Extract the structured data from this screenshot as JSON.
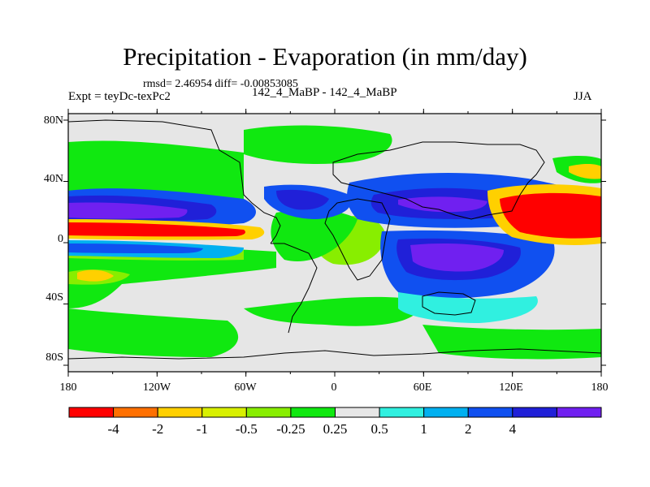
{
  "title": "Precipitation - Evaporation (in mm/day)",
  "stats": "rmsd= 2.46954 diff= -0.00853085",
  "experiment": "Expt = teyDc-texPc2",
  "subtitle": "142_4_MaBP - 142_4_MaBP",
  "season": "JJA",
  "y_axis_labels": [
    "80N",
    "40N",
    "0",
    "40S",
    "80S"
  ],
  "x_axis_labels": [
    "180",
    "120W",
    "60W",
    "0",
    "60E",
    "120E",
    "180"
  ],
  "colorbar": {
    "labels": [
      "-4",
      "-2",
      "-1",
      "-0.5",
      "-0.25",
      "0.25",
      "0.5",
      "1",
      "2",
      "4"
    ],
    "colors": [
      "#ff0000",
      "#ff7000",
      "#ffd000",
      "#d8f000",
      "#88ee00",
      "#10e810",
      "#e6e6e6",
      "#30f0e0",
      "#00b0f0",
      "#1050f0",
      "#2020d8",
      "#7020f0"
    ]
  },
  "map": {
    "land_color": "#e6e6e6",
    "frame_color": "#000000"
  }
}
